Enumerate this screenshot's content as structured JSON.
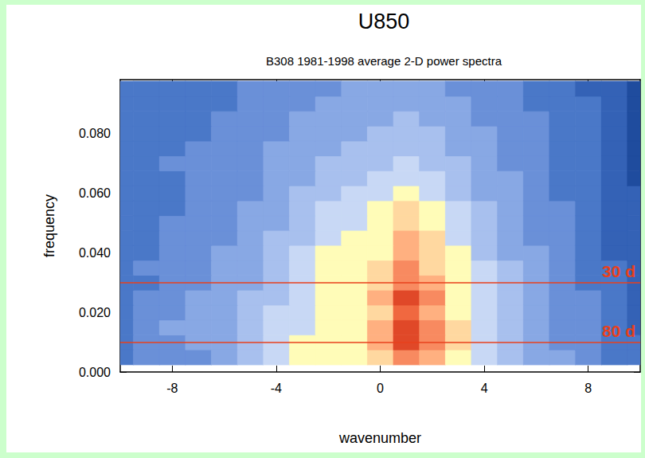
{
  "chart_data": {
    "type": "heatmap",
    "title": "U850",
    "subtitle": "B308 1981-1998 average 2-D power spectra",
    "xlabel": "wavenumber",
    "ylabel": "frequency",
    "x": [
      -10,
      -9,
      -8,
      -7,
      -6,
      -5,
      -4,
      -3,
      -2,
      -1,
      0,
      1,
      2,
      3,
      4,
      5,
      6,
      7,
      8,
      9,
      10
    ],
    "y": [
      0.005,
      0.01,
      0.015,
      0.02,
      0.025,
      0.03,
      0.035,
      0.04,
      0.045,
      0.05,
      0.055,
      0.06,
      0.065,
      0.07,
      0.075,
      0.08,
      0.085,
      0.09,
      0.095
    ],
    "cells": [
      [
        2,
        3,
        3,
        3,
        4,
        5,
        6,
        7,
        7,
        7,
        8,
        10,
        9,
        7,
        6,
        5,
        4,
        4,
        3,
        2,
        2
      ],
      [
        2,
        3,
        3,
        4,
        4,
        5,
        6,
        7,
        7,
        7,
        9,
        12,
        10,
        8,
        6,
        5,
        4,
        3,
        3,
        2,
        2
      ],
      [
        2,
        3,
        4,
        4,
        4,
        5,
        6,
        6,
        7,
        7,
        9,
        12,
        10,
        8,
        6,
        5,
        4,
        3,
        3,
        2,
        1
      ],
      [
        2,
        3,
        3,
        4,
        4,
        5,
        6,
        6,
        7,
        7,
        8,
        11,
        9,
        7,
        6,
        5,
        4,
        3,
        3,
        2,
        1
      ],
      [
        2,
        3,
        3,
        4,
        4,
        5,
        5,
        6,
        7,
        7,
        9,
        12,
        10,
        7,
        6,
        5,
        4,
        3,
        3,
        2,
        1
      ],
      [
        2,
        2,
        3,
        3,
        4,
        4,
        5,
        6,
        7,
        7,
        8,
        10,
        9,
        7,
        6,
        5,
        4,
        3,
        2,
        2,
        1
      ],
      [
        2,
        3,
        3,
        3,
        4,
        4,
        5,
        6,
        7,
        7,
        8,
        10,
        8,
        7,
        6,
        5,
        4,
        3,
        2,
        2,
        1
      ],
      [
        2,
        2,
        3,
        3,
        4,
        4,
        5,
        6,
        7,
        7,
        7,
        9,
        8,
        7,
        5,
        4,
        4,
        3,
        2,
        1,
        1
      ],
      [
        2,
        2,
        3,
        3,
        3,
        4,
        5,
        5,
        6,
        7,
        7,
        9,
        8,
        6,
        5,
        4,
        3,
        3,
        2,
        1,
        1
      ],
      [
        2,
        2,
        3,
        3,
        3,
        4,
        4,
        5,
        6,
        6,
        7,
        8,
        7,
        6,
        5,
        4,
        3,
        3,
        2,
        1,
        1
      ],
      [
        2,
        2,
        2,
        3,
        3,
        4,
        4,
        5,
        6,
        6,
        7,
        8,
        7,
        6,
        5,
        4,
        3,
        3,
        2,
        1,
        1
      ],
      [
        2,
        2,
        2,
        3,
        3,
        3,
        4,
        5,
        5,
        6,
        6,
        7,
        6,
        5,
        4,
        4,
        3,
        2,
        2,
        1,
        1
      ],
      [
        2,
        2,
        2,
        3,
        3,
        3,
        4,
        4,
        5,
        5,
        6,
        6,
        6,
        5,
        4,
        4,
        3,
        2,
        2,
        1,
        0
      ],
      [
        2,
        2,
        3,
        3,
        3,
        3,
        4,
        4,
        5,
        5,
        5,
        6,
        5,
        5,
        4,
        3,
        3,
        2,
        2,
        1,
        0
      ],
      [
        2,
        2,
        2,
        3,
        3,
        3,
        4,
        4,
        4,
        5,
        5,
        5,
        5,
        4,
        4,
        3,
        3,
        2,
        2,
        1,
        0
      ],
      [
        2,
        2,
        2,
        2,
        3,
        3,
        3,
        4,
        4,
        4,
        5,
        5,
        5,
        4,
        4,
        3,
        3,
        2,
        2,
        1,
        0
      ],
      [
        2,
        2,
        2,
        2,
        3,
        3,
        3,
        4,
        4,
        4,
        4,
        5,
        4,
        4,
        3,
        3,
        3,
        2,
        2,
        1,
        0
      ],
      [
        2,
        2,
        2,
        2,
        2,
        3,
        3,
        3,
        4,
        4,
        4,
        4,
        4,
        4,
        3,
        3,
        2,
        2,
        2,
        1,
        0
      ],
      [
        2,
        2,
        2,
        2,
        2,
        3,
        3,
        3,
        3,
        4,
        4,
        4,
        4,
        3,
        3,
        3,
        2,
        2,
        1,
        1,
        0
      ]
    ],
    "xlim": [
      -10,
      10
    ],
    "xticks": [
      -8,
      -4,
      0,
      4,
      8
    ],
    "ylim": [
      0,
      0.098
    ],
    "yticks": [
      {
        "value": 0,
        "label": "0.000"
      },
      {
        "value": 0.02,
        "label": "0.020"
      },
      {
        "value": 0.04,
        "label": "0.040"
      },
      {
        "value": 0.06,
        "label": "0.060"
      },
      {
        "value": 0.08,
        "label": "0.080"
      }
    ],
    "grid": false,
    "annotations": [
      {
        "label": "30 d",
        "y": 0.0333,
        "color": "#e8401c"
      },
      {
        "label": "80 d",
        "y": 0.0125,
        "color": "#e8401c"
      }
    ]
  }
}
